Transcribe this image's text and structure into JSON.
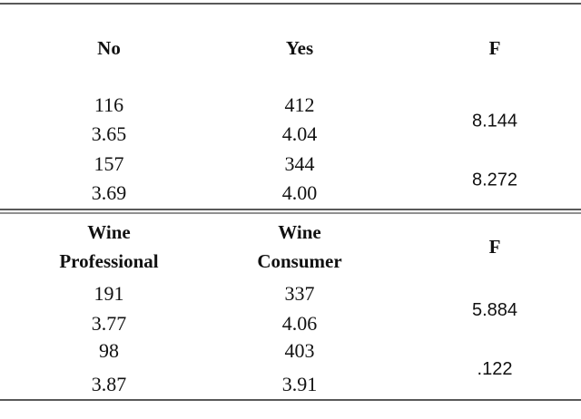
{
  "sections": [
    {
      "headers": [
        [
          "No"
        ],
        [
          "Yes"
        ],
        [
          "F"
        ]
      ],
      "groups": [
        {
          "rows": [
            [
              "116",
              "412"
            ],
            [
              "3.65",
              "4.04"
            ]
          ],
          "f": "8.144"
        },
        {
          "rows": [
            [
              "157",
              "344"
            ],
            [
              "3.69",
              "4.00"
            ]
          ],
          "f": "8.272"
        }
      ]
    },
    {
      "headers": [
        [
          "Wine",
          "Professional"
        ],
        [
          "Wine",
          "Consumer"
        ],
        [
          "F"
        ]
      ],
      "groups": [
        {
          "rows": [
            [
              "191",
              "337"
            ],
            [
              "3.77",
              "4.06"
            ]
          ],
          "f": "5.884"
        },
        {
          "rows": [
            [
              "98",
              "403"
            ],
            [
              "3.87",
              "3.91"
            ]
          ],
          "f": ".122"
        }
      ]
    }
  ]
}
